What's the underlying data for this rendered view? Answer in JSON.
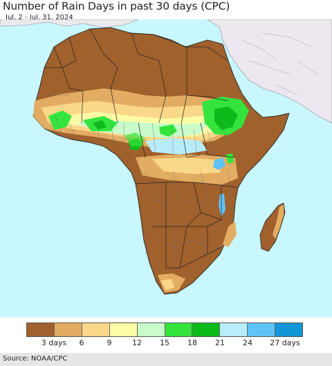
{
  "title": "Number of Rain Days in past 30 days (CPC)",
  "subtitle": "Jul. 2 - Jul. 31, 2024",
  "source": "Source: NOAA/CPC",
  "colors": {
    "ocean": "#c8f7ff",
    "outside_region": "#ede8f0",
    "border": "#222222",
    "inner_border": "#6a6a7a"
  },
  "legend": {
    "swatches": [
      "#a0612d",
      "#e2ad62",
      "#fad889",
      "#fdfca6",
      "#c8fbc9",
      "#34e43d",
      "#0cbb1a",
      "#b9ecfb",
      "#5fc3f7",
      "#1296d8"
    ],
    "labels": [
      {
        "key": "l3",
        "text": "3 days"
      },
      {
        "key": "l6",
        "text": "6"
      },
      {
        "key": "l9",
        "text": "9"
      },
      {
        "key": "l12",
        "text": "12"
      },
      {
        "key": "l15",
        "text": "15"
      },
      {
        "key": "l18",
        "text": "18"
      },
      {
        "key": "l21",
        "text": "21"
      },
      {
        "key": "l24",
        "text": "24"
      },
      {
        "key": "l27",
        "text": "27 days"
      }
    ]
  }
}
